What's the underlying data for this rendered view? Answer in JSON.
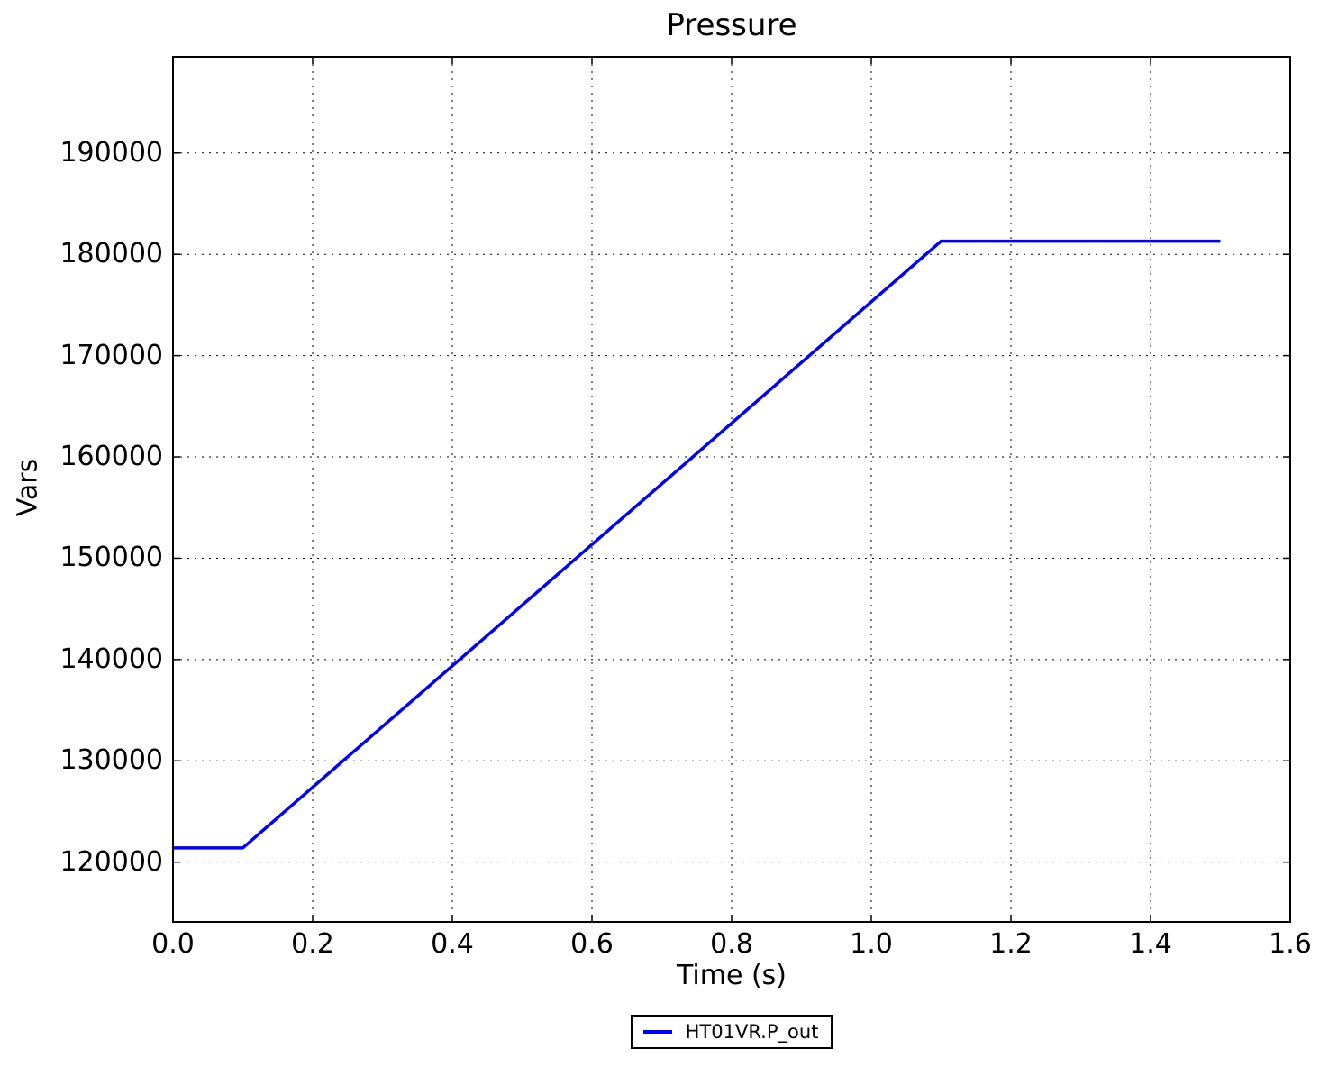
{
  "chart_data": {
    "type": "line",
    "title": "Pressure",
    "xlabel": "Time (s)",
    "ylabel": "Vars",
    "xlim": [
      0,
      1.6
    ],
    "ylim": [
      114100,
      199500
    ],
    "xticks": [
      0.0,
      0.2,
      0.4,
      0.6,
      0.8,
      1.0,
      1.2,
      1.4,
      1.6
    ],
    "yticks": [
      120000,
      130000,
      140000,
      150000,
      160000,
      170000,
      180000,
      190000
    ],
    "grid": true,
    "grid_style": "dotted",
    "legend_position": "below-center",
    "line_color": "#0000ff",
    "series": [
      {
        "name": "HT01VR.P_out",
        "color": "#0000ff",
        "points": [
          [
            0.0,
            121400
          ],
          [
            0.1,
            121400
          ],
          [
            1.1,
            181300
          ],
          [
            1.5,
            181300
          ]
        ]
      }
    ]
  }
}
